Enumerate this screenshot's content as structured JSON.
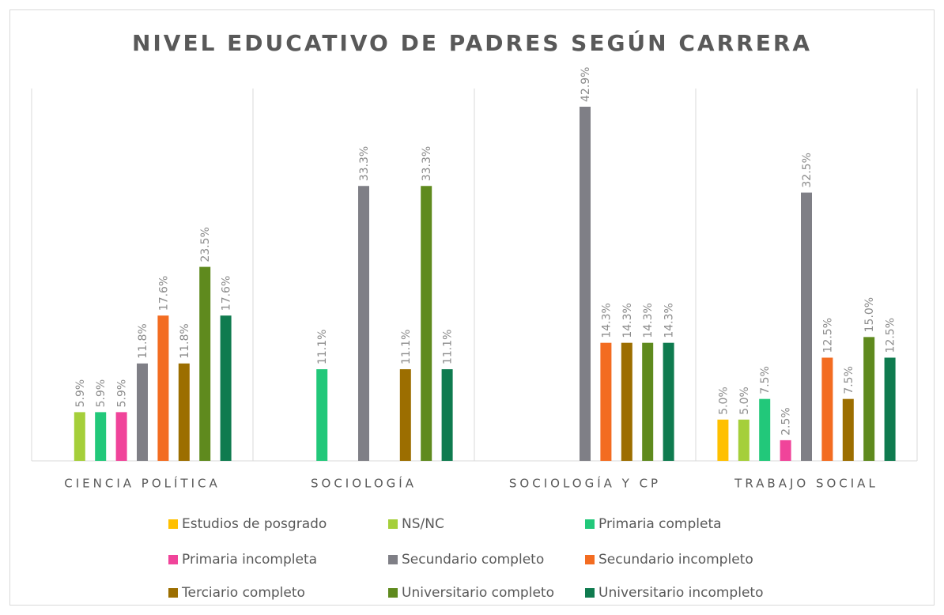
{
  "chart_data": {
    "type": "bar",
    "title": "NIVEL EDUCATIVO DE PADRES SEGÚN CARRERA",
    "categories": [
      "CIENCIA POLÍTICA",
      "SOCIOLOGÍA",
      "SOCIOLOGÍA Y CP",
      "TRABAJO SOCIAL"
    ],
    "series": [
      {
        "name": "Estudios de posgrado",
        "color": "#ffc000",
        "values": [
          null,
          null,
          null,
          5.0
        ],
        "value_labels": [
          null,
          null,
          null,
          "5.0%"
        ]
      },
      {
        "name": "NS/NC",
        "color": "#a5cf3a",
        "values": [
          5.9,
          null,
          null,
          5.0
        ],
        "value_labels": [
          "5.9%",
          null,
          null,
          "5.0%"
        ]
      },
      {
        "name": "Primaria completa",
        "color": "#22c87a",
        "values": [
          5.9,
          11.1,
          null,
          7.5
        ],
        "value_labels": [
          "5.9%",
          "11.1%",
          null,
          "7.5%"
        ]
      },
      {
        "name": "Primaria incompleta",
        "color": "#f0449a",
        "values": [
          5.9,
          null,
          null,
          2.5
        ],
        "value_labels": [
          "5.9%",
          null,
          null,
          "2.5%"
        ]
      },
      {
        "name": "Secundario completo",
        "color": "#7f7f86",
        "values": [
          11.8,
          33.3,
          42.9,
          32.5
        ],
        "value_labels": [
          "11.8%",
          "33.3%",
          "42.9%",
          "32.5%"
        ]
      },
      {
        "name": "Secundario incompleto",
        "color": "#f36c21",
        "values": [
          17.6,
          null,
          14.3,
          12.5
        ],
        "value_labels": [
          "17.6%",
          null,
          "14.3%",
          "12.5%"
        ]
      },
      {
        "name": "Terciario completo",
        "color": "#9c6e00",
        "values": [
          11.8,
          11.1,
          14.3,
          7.5
        ],
        "value_labels": [
          "11.8%",
          "11.1%",
          "14.3%",
          "7.5%"
        ]
      },
      {
        "name": "Universitario completo",
        "color": "#5f8a1e",
        "values": [
          23.5,
          33.3,
          14.3,
          15.0
        ],
        "value_labels": [
          "23.5%",
          "33.3%",
          "14.3%",
          "15.0%"
        ]
      },
      {
        "name": "Universitario incompleto",
        "color": "#0f7b4f",
        "values": [
          17.6,
          11.1,
          14.3,
          12.5
        ],
        "value_labels": [
          "17.6%",
          "11.1%",
          "14.3%",
          "12.5%"
        ]
      }
    ]
  }
}
